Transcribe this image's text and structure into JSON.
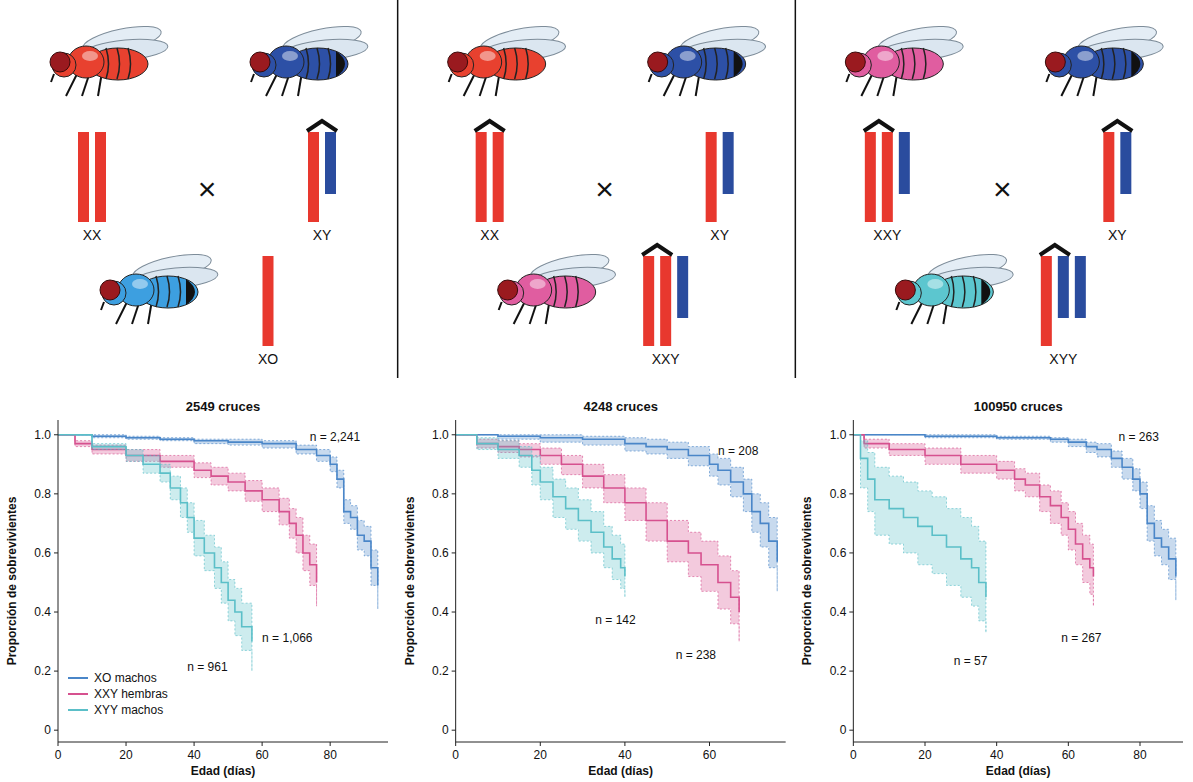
{
  "diagram": {
    "symbol": "×",
    "crosses": [
      {
        "parents": [
          {
            "karyotype": "XX",
            "color": "#e8412f"
          },
          {
            "karyotype": "XY",
            "color": "#2d50a6"
          }
        ],
        "offspring": {
          "karyotype": "XO",
          "color": "#3d9fe0"
        }
      },
      {
        "parents": [
          {
            "karyotype": "XX",
            "color": "#e8412f"
          },
          {
            "karyotype": "XY",
            "color": "#2d50a6"
          }
        ],
        "offspring": {
          "karyotype": "XXY",
          "color": "#e05da0"
        }
      },
      {
        "parents": [
          {
            "karyotype": "XXY",
            "color": "#e05da0"
          },
          {
            "karyotype": "XY",
            "color": "#2d50a6"
          }
        ],
        "offspring": {
          "karyotype": "XYY",
          "color": "#5cc6cf"
        }
      }
    ]
  },
  "chart_data": [
    {
      "type": "line",
      "title": "2549 cruces",
      "x_label": "Edad (días)",
      "y_label": "Proporción de sobrevivientes",
      "xlim": [
        0,
        97
      ],
      "xticks": [
        0,
        20,
        40,
        60,
        80
      ],
      "ylim": [
        -0.04,
        1.05
      ],
      "yticks": [
        0,
        0.2,
        0.4,
        0.6,
        0.8,
        {
          "value": 1,
          "label": "1.0"
        }
      ],
      "grid": false,
      "line_style": "step",
      "legend": "lower left",
      "series": [
        {
          "name": "XO machos",
          "color": "#4a86c8",
          "x": [
            0,
            10,
            20,
            30,
            40,
            50,
            60,
            70,
            76,
            80,
            82,
            84,
            86,
            88,
            90,
            92,
            94
          ],
          "values": [
            1.0,
            0.995,
            0.99,
            0.985,
            0.98,
            0.975,
            0.97,
            0.95,
            0.93,
            0.9,
            0.85,
            0.74,
            0.72,
            0.66,
            0.64,
            0.55,
            0.49
          ],
          "lower": [
            1.0,
            0.99,
            0.985,
            0.98,
            0.97,
            0.965,
            0.955,
            0.935,
            0.91,
            0.875,
            0.82,
            0.7,
            0.68,
            0.61,
            0.59,
            0.49,
            0.41
          ],
          "upper": [
            1.0,
            1.0,
            0.995,
            0.99,
            0.985,
            0.985,
            0.98,
            0.965,
            0.95,
            0.925,
            0.88,
            0.78,
            0.76,
            0.71,
            0.69,
            0.61,
            0.56
          ]
        },
        {
          "name": "XXY hembras",
          "color": "#d6518f",
          "x": [
            0,
            5,
            10,
            20,
            30,
            40,
            45,
            50,
            55,
            60,
            65,
            68,
            70,
            72,
            74,
            76
          ],
          "values": [
            1.0,
            0.97,
            0.95,
            0.93,
            0.91,
            0.88,
            0.86,
            0.84,
            0.81,
            0.78,
            0.74,
            0.7,
            0.66,
            0.6,
            0.56,
            0.5
          ],
          "lower": [
            1.0,
            0.96,
            0.935,
            0.91,
            0.89,
            0.855,
            0.83,
            0.81,
            0.775,
            0.74,
            0.695,
            0.65,
            0.6,
            0.54,
            0.49,
            0.42
          ],
          "upper": [
            1.0,
            0.98,
            0.965,
            0.95,
            0.93,
            0.905,
            0.89,
            0.87,
            0.845,
            0.82,
            0.785,
            0.75,
            0.72,
            0.66,
            0.63,
            0.58
          ]
        },
        {
          "name": "XYY machos",
          "color": "#5bbfc8",
          "x": [
            0,
            10,
            20,
            25,
            30,
            33,
            36,
            38,
            40,
            43,
            46,
            48,
            50,
            52,
            54,
            57
          ],
          "values": [
            1.0,
            0.96,
            0.93,
            0.9,
            0.87,
            0.82,
            0.77,
            0.72,
            0.65,
            0.6,
            0.55,
            0.5,
            0.44,
            0.4,
            0.35,
            0.3
          ],
          "lower": [
            1.0,
            0.95,
            0.91,
            0.87,
            0.84,
            0.78,
            0.72,
            0.67,
            0.59,
            0.54,
            0.48,
            0.43,
            0.37,
            0.32,
            0.27,
            0.2
          ],
          "upper": [
            1.0,
            0.97,
            0.95,
            0.93,
            0.9,
            0.86,
            0.82,
            0.77,
            0.71,
            0.66,
            0.62,
            0.57,
            0.51,
            0.48,
            0.43,
            0.38
          ]
        }
      ],
      "annotations": [
        {
          "text": "n = 2,241",
          "x": 74,
          "y": 0.98
        },
        {
          "text": "n = 1,066",
          "x": 60,
          "y": 0.3
        },
        {
          "text": "n = 961",
          "x": 38,
          "y": 0.2
        }
      ]
    },
    {
      "type": "line",
      "title": "4248 cruces",
      "x_label": "Edad (días)",
      "y_label": "Proporción de sobrevivientes",
      "xlim": [
        0,
        78
      ],
      "xticks": [
        0,
        20,
        40,
        60
      ],
      "ylim": [
        -0.04,
        1.05
      ],
      "yticks": [
        0,
        0.2,
        0.4,
        0.6,
        0.8,
        {
          "value": 1,
          "label": "1.0"
        }
      ],
      "grid": false,
      "line_style": "step",
      "series": [
        {
          "color": "#4a86c8",
          "x": [
            0,
            10,
            20,
            30,
            40,
            45,
            50,
            55,
            60,
            62,
            65,
            68,
            70,
            72,
            74,
            76
          ],
          "values": [
            1.0,
            0.995,
            0.99,
            0.985,
            0.97,
            0.96,
            0.95,
            0.93,
            0.9,
            0.88,
            0.84,
            0.8,
            0.74,
            0.7,
            0.64,
            0.57
          ],
          "lower": [
            1.0,
            0.985,
            0.975,
            0.965,
            0.945,
            0.935,
            0.92,
            0.895,
            0.86,
            0.83,
            0.79,
            0.74,
            0.67,
            0.62,
            0.55,
            0.47
          ],
          "upper": [
            1.0,
            1.0,
            1.0,
            0.995,
            0.99,
            0.985,
            0.975,
            0.96,
            0.935,
            0.92,
            0.89,
            0.85,
            0.8,
            0.77,
            0.72,
            0.66
          ]
        },
        {
          "color": "#d6518f",
          "x": [
            0,
            5,
            10,
            15,
            20,
            25,
            30,
            35,
            40,
            45,
            50,
            55,
            58,
            62,
            65,
            67
          ],
          "values": [
            1.0,
            0.97,
            0.96,
            0.95,
            0.93,
            0.9,
            0.86,
            0.82,
            0.77,
            0.71,
            0.64,
            0.6,
            0.56,
            0.5,
            0.45,
            0.4
          ],
          "lower": [
            1.0,
            0.955,
            0.94,
            0.925,
            0.9,
            0.865,
            0.82,
            0.77,
            0.71,
            0.64,
            0.57,
            0.52,
            0.47,
            0.41,
            0.36,
            0.3
          ],
          "upper": [
            1.0,
            0.985,
            0.98,
            0.97,
            0.955,
            0.93,
            0.9,
            0.865,
            0.82,
            0.77,
            0.71,
            0.67,
            0.64,
            0.59,
            0.54,
            0.5
          ]
        },
        {
          "color": "#5bbfc8",
          "x": [
            0,
            5,
            10,
            15,
            18,
            20,
            23,
            26,
            29,
            32,
            35,
            37,
            39,
            40
          ],
          "values": [
            1.0,
            0.97,
            0.95,
            0.93,
            0.88,
            0.84,
            0.79,
            0.75,
            0.71,
            0.67,
            0.62,
            0.58,
            0.55,
            0.52
          ],
          "lower": [
            1.0,
            0.95,
            0.92,
            0.89,
            0.83,
            0.78,
            0.72,
            0.68,
            0.64,
            0.6,
            0.55,
            0.51,
            0.48,
            0.45
          ],
          "upper": [
            1.0,
            0.99,
            0.98,
            0.96,
            0.93,
            0.89,
            0.85,
            0.82,
            0.78,
            0.74,
            0.69,
            0.66,
            0.63,
            0.6
          ]
        }
      ],
      "annotations": [
        {
          "text": "n = 208",
          "x": 62,
          "y": 0.93
        },
        {
          "text": "n = 142",
          "x": 33,
          "y": 0.36
        },
        {
          "text": "n = 238",
          "x": 52,
          "y": 0.24
        }
      ]
    },
    {
      "type": "line",
      "title": "100950 cruces",
      "x_label": "Edad (días)",
      "y_label": "Proporción de sobrevivientes",
      "xlim": [
        0,
        92
      ],
      "xticks": [
        0,
        20,
        40,
        60,
        80
      ],
      "ylim": [
        -0.04,
        1.05
      ],
      "yticks": [
        0,
        0.2,
        0.4,
        0.6,
        0.8,
        {
          "value": 1,
          "label": "1.0"
        }
      ],
      "grid": false,
      "line_style": "step",
      "series": [
        {
          "color": "#4a86c8",
          "x": [
            0,
            20,
            40,
            55,
            60,
            65,
            68,
            72,
            75,
            78,
            80,
            82,
            84,
            86,
            88,
            90
          ],
          "values": [
            1.0,
            0.995,
            0.99,
            0.985,
            0.975,
            0.96,
            0.95,
            0.92,
            0.89,
            0.85,
            0.8,
            0.7,
            0.65,
            0.62,
            0.58,
            0.52
          ],
          "lower": [
            1.0,
            0.99,
            0.985,
            0.975,
            0.96,
            0.94,
            0.925,
            0.89,
            0.85,
            0.81,
            0.75,
            0.64,
            0.59,
            0.56,
            0.51,
            0.44
          ],
          "upper": [
            1.0,
            1.0,
            0.995,
            0.99,
            0.985,
            0.975,
            0.97,
            0.945,
            0.92,
            0.885,
            0.84,
            0.76,
            0.71,
            0.68,
            0.65,
            0.6
          ]
        },
        {
          "color": "#d6518f",
          "x": [
            0,
            3,
            10,
            20,
            30,
            40,
            45,
            48,
            52,
            55,
            58,
            60,
            62,
            64,
            66,
            67
          ],
          "values": [
            1.0,
            0.97,
            0.95,
            0.93,
            0.9,
            0.88,
            0.85,
            0.83,
            0.79,
            0.76,
            0.72,
            0.68,
            0.63,
            0.58,
            0.55,
            0.52
          ],
          "lower": [
            1.0,
            0.955,
            0.93,
            0.9,
            0.87,
            0.85,
            0.81,
            0.79,
            0.74,
            0.7,
            0.66,
            0.61,
            0.56,
            0.5,
            0.46,
            0.42
          ],
          "upper": [
            1.0,
            0.985,
            0.97,
            0.955,
            0.93,
            0.91,
            0.885,
            0.87,
            0.83,
            0.81,
            0.77,
            0.74,
            0.7,
            0.66,
            0.63,
            0.61
          ]
        },
        {
          "color": "#5bbfc8",
          "x": [
            0,
            2,
            4,
            6,
            10,
            14,
            18,
            22,
            26,
            30,
            33,
            35,
            37
          ],
          "values": [
            1.0,
            0.92,
            0.85,
            0.78,
            0.75,
            0.72,
            0.69,
            0.66,
            0.62,
            0.58,
            0.55,
            0.5,
            0.45
          ],
          "lower": [
            1.0,
            0.82,
            0.74,
            0.66,
            0.63,
            0.6,
            0.56,
            0.53,
            0.49,
            0.45,
            0.42,
            0.37,
            0.33
          ],
          "upper": [
            1.0,
            0.98,
            0.94,
            0.89,
            0.86,
            0.84,
            0.81,
            0.79,
            0.75,
            0.72,
            0.69,
            0.64,
            0.6
          ]
        }
      ],
      "annotations": [
        {
          "text": "n = 263",
          "x": 74,
          "y": 0.98
        },
        {
          "text": "n = 57",
          "x": 28,
          "y": 0.22
        },
        {
          "text": "n = 267",
          "x": 58,
          "y": 0.3
        }
      ]
    }
  ]
}
